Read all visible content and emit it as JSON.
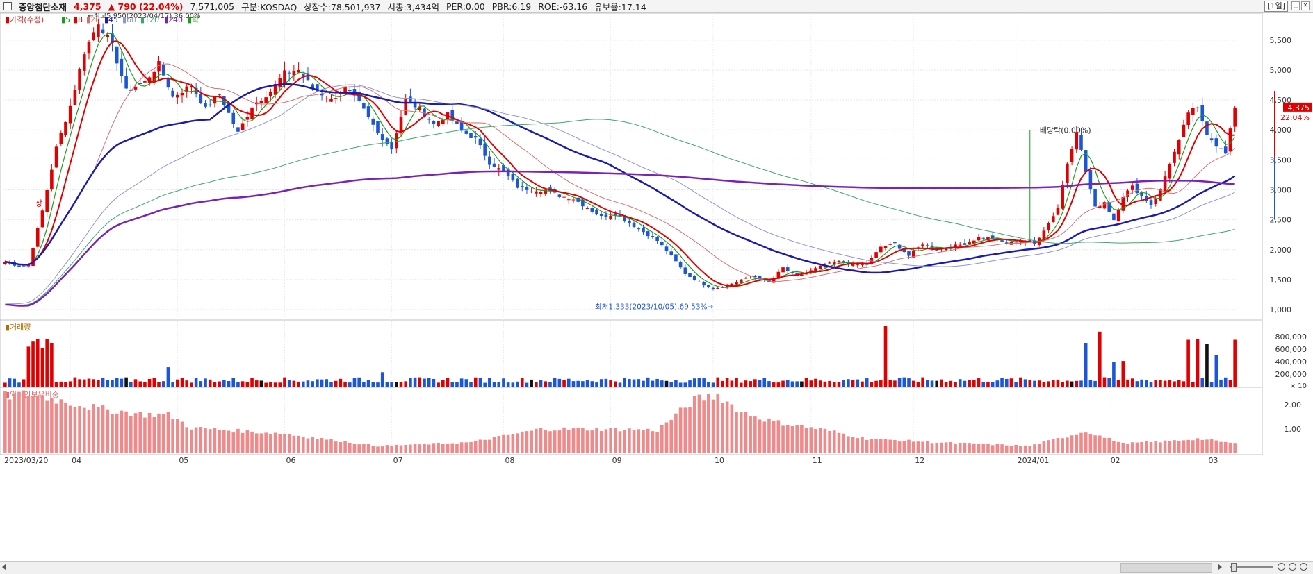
{
  "header": {
    "stock_name": "중앙첨단소재",
    "price": "4,375",
    "change": "▲ 790 (22.04%)",
    "volume": "7,571,005",
    "market": "구분:KOSDAQ",
    "shares": "상장수:78,501,937",
    "cap": "시총:3,434억",
    "per": "PER:0.00",
    "pbr": "PBR:6.19",
    "roe": "ROE:-63.16",
    "float": "유보율:17.14",
    "period": "[1일]"
  },
  "legend": {
    "price_label": "가격(수정)",
    "ma": [
      "5",
      "8",
      "20",
      "45",
      "60",
      "120",
      "240"
    ],
    "sep_label": "락"
  },
  "chart_data": {
    "type": "candlestick",
    "x_labels": [
      "2023/03/20",
      "04",
      "05",
      "06",
      "07",
      "08",
      "09",
      "10",
      "11",
      "12",
      "2024/01",
      "02",
      "03"
    ],
    "ylim": [
      850,
      5950
    ],
    "y_ticks": [
      1000,
      1500,
      2000,
      2500,
      3000,
      3500,
      4000,
      4500,
      5000,
      5500
    ],
    "y_tick_labels": [
      "1,000",
      "1,500",
      "2,000",
      "2,500",
      "3,000",
      "3,500",
      "4,000",
      "4,500",
      "5,000",
      "5,500"
    ],
    "last_price_label": "4,375",
    "last_change_label": "22.04%",
    "annotations": {
      "high": "최고5,950(2023/04/17),36.00%",
      "low": "최저1,333(2023/10/05),69.53%",
      "dividend": "배당락(0.00%)",
      "limit_up": "상"
    },
    "close_anchors": [
      [
        0,
        1800
      ],
      [
        3,
        1720
      ],
      [
        5,
        1750
      ],
      [
        8,
        2650
      ],
      [
        11,
        3700
      ],
      [
        14,
        4400
      ],
      [
        17,
        5300
      ],
      [
        20,
        5800
      ],
      [
        23,
        5400
      ],
      [
        26,
        4650
      ],
      [
        30,
        4800
      ],
      [
        33,
        5100
      ],
      [
        36,
        4550
      ],
      [
        40,
        4750
      ],
      [
        43,
        4350
      ],
      [
        46,
        4600
      ],
      [
        50,
        3950
      ],
      [
        53,
        4400
      ],
      [
        57,
        4650
      ],
      [
        60,
        4950
      ],
      [
        63,
        5000
      ],
      [
        66,
        4700
      ],
      [
        70,
        4500
      ],
      [
        73,
        4700
      ],
      [
        76,
        4450
      ],
      [
        80,
        3950
      ],
      [
        83,
        3700
      ],
      [
        86,
        4500
      ],
      [
        89,
        4350
      ],
      [
        92,
        4100
      ],
      [
        95,
        4250
      ],
      [
        98,
        3980
      ],
      [
        101,
        3850
      ],
      [
        104,
        3450
      ],
      [
        107,
        3300
      ],
      [
        110,
        3050
      ],
      [
        113,
        3000
      ],
      [
        116,
        3000
      ],
      [
        119,
        2900
      ],
      [
        122,
        2850
      ],
      [
        125,
        2700
      ],
      [
        128,
        2550
      ],
      [
        131,
        2600
      ],
      [
        134,
        2450
      ],
      [
        137,
        2300
      ],
      [
        140,
        2150
      ],
      [
        143,
        1900
      ],
      [
        146,
        1600
      ],
      [
        149,
        1450
      ],
      [
        152,
        1350
      ],
      [
        155,
        1400
      ],
      [
        158,
        1500
      ],
      [
        161,
        1550
      ],
      [
        164,
        1450
      ],
      [
        167,
        1700
      ],
      [
        170,
        1550
      ],
      [
        173,
        1650
      ],
      [
        176,
        1750
      ],
      [
        179,
        1800
      ],
      [
        182,
        1750
      ],
      [
        185,
        1750
      ],
      [
        188,
        2050
      ],
      [
        191,
        2100
      ],
      [
        194,
        1900
      ],
      [
        197,
        2100
      ],
      [
        200,
        2000
      ],
      [
        203,
        2050
      ],
      [
        206,
        2100
      ],
      [
        209,
        2200
      ],
      [
        212,
        2200
      ],
      [
        215,
        2100
      ],
      [
        218,
        2150
      ],
      [
        221,
        2100
      ],
      [
        224,
        2450
      ],
      [
        226,
        2700
      ],
      [
        228,
        3450
      ],
      [
        230,
        4000
      ],
      [
        232,
        3300
      ],
      [
        234,
        2700
      ],
      [
        236,
        2800
      ],
      [
        238,
        2500
      ],
      [
        240,
        2900
      ],
      [
        242,
        3050
      ],
      [
        244,
        2900
      ],
      [
        246,
        2750
      ],
      [
        248,
        3000
      ],
      [
        250,
        3450
      ],
      [
        252,
        3800
      ],
      [
        254,
        4300
      ],
      [
        256,
        4350
      ],
      [
        258,
        3950
      ],
      [
        260,
        3750
      ],
      [
        262,
        3600
      ],
      [
        264,
        4375
      ]
    ],
    "ma_colors": {
      "5": "#1e9c1e",
      "8": "#e00000",
      "20": "#d87070",
      "45": "#1a1ab0",
      "60": "#8c96d2",
      "120": "#3ca66c",
      "240": "#7a22b5"
    },
    "volume_panel": {
      "label": "거래량",
      "y_ticks": [
        200000,
        400000,
        600000,
        800000
      ],
      "y_tick_labels": [
        "200,000",
        "400,000",
        "600,000",
        "800,000"
      ],
      "unit": "× 10",
      "ylim": [
        0,
        1000000
      ],
      "spikes": [
        [
          5,
          640000
        ],
        [
          6,
          720000
        ],
        [
          7,
          760000
        ],
        [
          8,
          620000
        ],
        [
          9,
          760000
        ],
        [
          10,
          700000
        ],
        [
          35,
          310000
        ],
        [
          81,
          230000
        ],
        [
          189,
          970000
        ],
        [
          232,
          700000
        ],
        [
          235,
          880000
        ],
        [
          238,
          390000
        ],
        [
          240,
          410000
        ],
        [
          254,
          750000
        ],
        [
          256,
          760000
        ],
        [
          258,
          680000
        ],
        [
          260,
          500000
        ],
        [
          264,
          750000
        ]
      ]
    },
    "foreign_panel": {
      "label": "외국인보유비중",
      "y_ticks": [
        1.0,
        2.0
      ],
      "y_tick_labels": [
        "1.00",
        "2.00"
      ],
      "ylim": [
        0,
        2.55
      ],
      "anchors": [
        [
          0,
          2.35
        ],
        [
          5,
          2.45
        ],
        [
          15,
          2.05
        ],
        [
          20,
          1.85
        ],
        [
          30,
          1.6
        ],
        [
          35,
          1.6
        ],
        [
          40,
          1.05
        ],
        [
          60,
          0.8
        ],
        [
          80,
          0.3
        ],
        [
          100,
          0.45
        ],
        [
          115,
          1.0
        ],
        [
          130,
          1.0
        ],
        [
          140,
          0.95
        ],
        [
          148,
          2.2
        ],
        [
          153,
          2.4
        ],
        [
          158,
          1.7
        ],
        [
          165,
          1.3
        ],
        [
          175,
          1.0
        ],
        [
          185,
          0.6
        ],
        [
          200,
          0.45
        ],
        [
          220,
          0.3
        ],
        [
          232,
          0.9
        ],
        [
          240,
          0.4
        ],
        [
          250,
          0.5
        ],
        [
          256,
          0.6
        ],
        [
          264,
          0.4
        ]
      ]
    }
  },
  "bottom_bar": {
    "scroll_left_label": "scroll-left",
    "scroll_right_label": "scroll-right"
  }
}
